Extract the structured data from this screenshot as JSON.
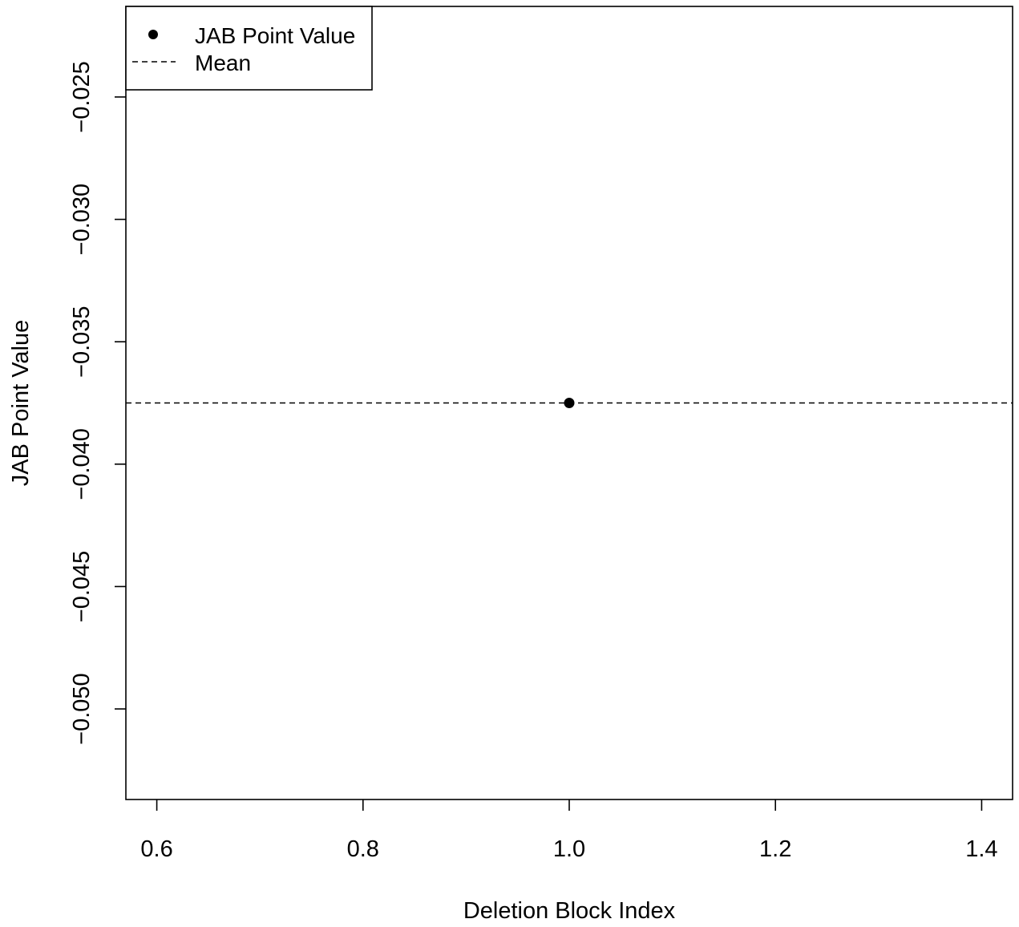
{
  "chart_data": {
    "type": "scatter",
    "title": "",
    "xlabel": "Deletion Block Index",
    "ylabel": "JAB Point Value",
    "xlim": [
      0.57,
      1.43
    ],
    "ylim": [
      -0.0537,
      -0.0213
    ],
    "x_ticks": [
      0.6,
      0.8,
      1.0,
      1.2,
      1.4
    ],
    "x_tick_labels": [
      "0.6",
      "0.8",
      "1.0",
      "1.2",
      "1.4"
    ],
    "y_ticks": [
      -0.025,
      -0.03,
      -0.035,
      -0.04,
      -0.045,
      -0.05
    ],
    "y_tick_labels": [
      "−0.025",
      "−0.030",
      "−0.035",
      "−0.040",
      "−0.045",
      "−0.050"
    ],
    "grid": false,
    "legend_position": "top-left",
    "legend": [
      {
        "label": "JAB Point Value",
        "symbol": "point"
      },
      {
        "label": "Mean",
        "symbol": "dashed-line"
      }
    ],
    "series": [
      {
        "name": "JAB Point Value",
        "type": "scatter",
        "x": [
          1.0
        ],
        "y": [
          -0.0375
        ],
        "color": "#000000"
      }
    ],
    "reference_lines": [
      {
        "name": "Mean",
        "orientation": "horizontal",
        "y": -0.0375,
        "style": "dashed",
        "color": "#000000"
      }
    ]
  }
}
